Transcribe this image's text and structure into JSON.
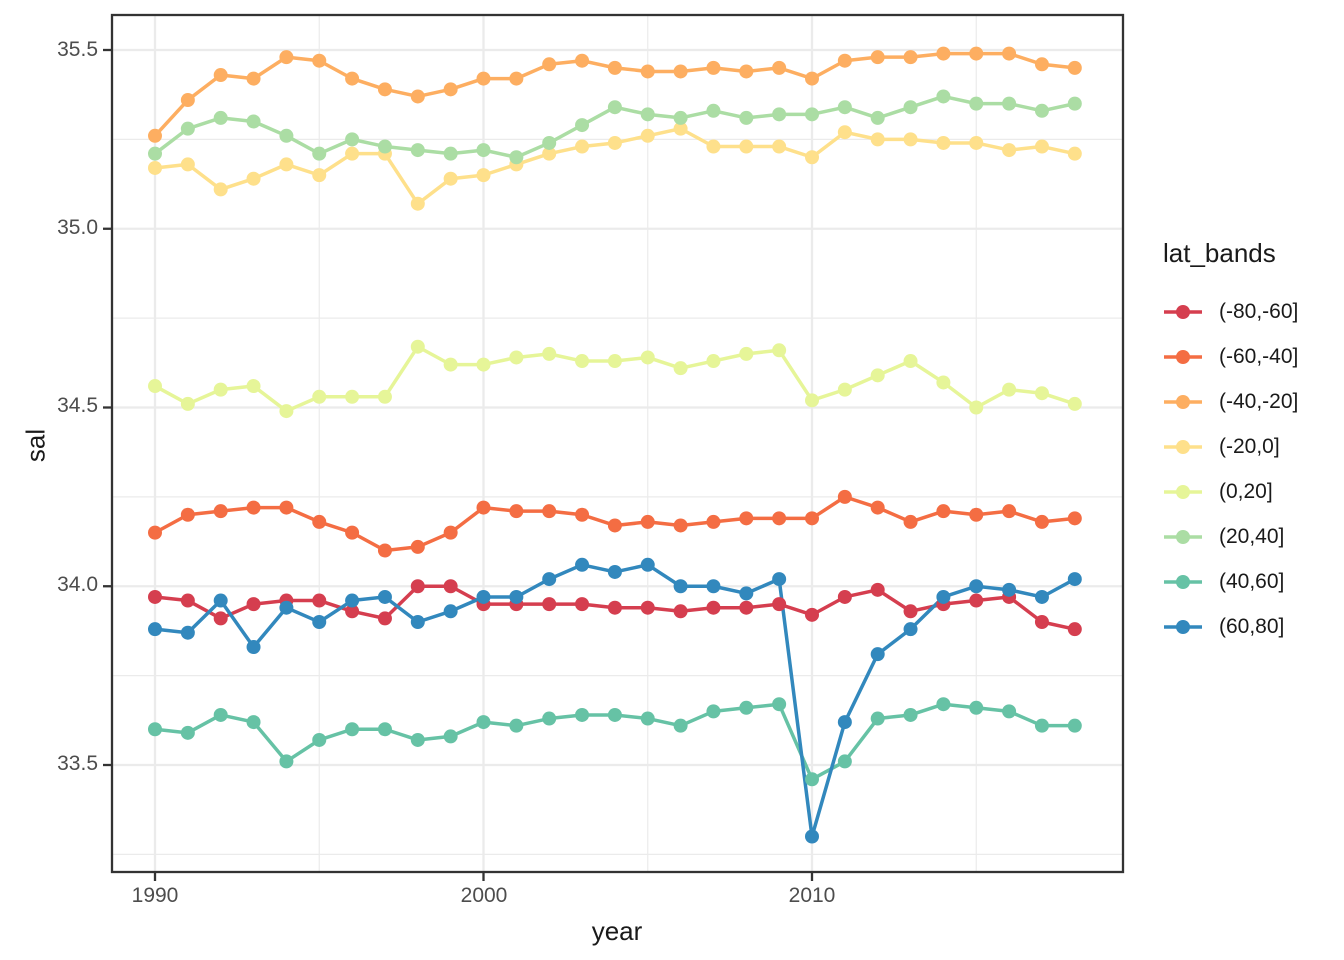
{
  "chart_data": {
    "type": "line",
    "title": "",
    "x_axis": {
      "label": "year",
      "tick_labels": [
        "1990",
        "2000",
        "2010"
      ],
      "tick_values": [
        1990,
        2000,
        2010
      ],
      "minor_gridlines": [
        1995,
        2005,
        2015
      ],
      "range": [
        1988.6,
        2019.5
      ]
    },
    "y_axis": {
      "label": "sal",
      "tick_labels": [
        "35.5",
        "35.0",
        "34.5",
        "34.0",
        "33.5"
      ],
      "tick_values": [
        35.5,
        35.0,
        34.5,
        34.0,
        33.5
      ],
      "minor_gridlines": [
        35.25,
        34.75,
        34.25,
        33.75,
        33.25
      ],
      "range": [
        33.2,
        35.6
      ]
    },
    "legend": {
      "title": "lat_bands",
      "position": "right"
    },
    "grid": "major-and-minor",
    "marker": "filled-circle",
    "panel_style": {
      "background": "#ffffff",
      "grid_color": "#ebebeb",
      "border_color": "#333333",
      "tick_color": "#333333"
    },
    "x": [
      1990,
      1991,
      1992,
      1993,
      1994,
      1995,
      1996,
      1997,
      1998,
      1999,
      2000,
      2001,
      2002,
      2003,
      2004,
      2005,
      2006,
      2007,
      2008,
      2009,
      2010,
      2011,
      2012,
      2013,
      2014,
      2015,
      2016,
      2017,
      2018
    ],
    "series": [
      {
        "name": "(-80,-60]",
        "color": "#d53e4f",
        "values": [
          33.97,
          33.96,
          33.91,
          33.95,
          33.96,
          33.96,
          33.93,
          33.91,
          34.0,
          34.0,
          33.95,
          33.95,
          33.95,
          33.95,
          33.94,
          33.94,
          33.93,
          33.94,
          33.94,
          33.95,
          33.92,
          33.97,
          33.99,
          33.93,
          33.95,
          33.96,
          33.97,
          33.9,
          33.88
        ]
      },
      {
        "name": "(-60,-40]",
        "color": "#f46d43",
        "values": [
          34.15,
          34.2,
          34.21,
          34.22,
          34.22,
          34.18,
          34.15,
          34.1,
          34.11,
          34.15,
          34.22,
          34.21,
          34.21,
          34.2,
          34.17,
          34.18,
          34.17,
          34.18,
          34.19,
          34.19,
          34.19,
          34.25,
          34.22,
          34.18,
          34.21,
          34.2,
          34.21,
          34.18,
          34.19
        ]
      },
      {
        "name": "(-40,-20]",
        "color": "#fdae61",
        "values": [
          35.26,
          35.36,
          35.43,
          35.42,
          35.48,
          35.47,
          35.42,
          35.39,
          35.37,
          35.39,
          35.42,
          35.42,
          35.46,
          35.47,
          35.45,
          35.44,
          35.44,
          35.45,
          35.44,
          35.45,
          35.42,
          35.47,
          35.48,
          35.48,
          35.49,
          35.49,
          35.49,
          35.46,
          35.45
        ]
      },
      {
        "name": "(-20,0]",
        "color": "#fee08b",
        "values": [
          35.17,
          35.18,
          35.11,
          35.14,
          35.18,
          35.15,
          35.21,
          35.21,
          35.07,
          35.14,
          35.15,
          35.18,
          35.21,
          35.23,
          35.24,
          35.26,
          35.28,
          35.23,
          35.23,
          35.23,
          35.2,
          35.27,
          35.25,
          35.25,
          35.24,
          35.24,
          35.22,
          35.23,
          35.21
        ]
      },
      {
        "name": "(0,20]",
        "color": "#e6f598",
        "values": [
          34.56,
          34.51,
          34.55,
          34.56,
          34.49,
          34.53,
          34.53,
          34.53,
          34.67,
          34.62,
          34.62,
          34.64,
          34.65,
          34.63,
          34.63,
          34.64,
          34.61,
          34.63,
          34.65,
          34.66,
          34.52,
          34.55,
          34.59,
          34.63,
          34.57,
          34.5,
          34.55,
          34.54,
          34.51
        ]
      },
      {
        "name": "(20,40]",
        "color": "#abdda4",
        "values": [
          35.21,
          35.28,
          35.31,
          35.3,
          35.26,
          35.21,
          35.25,
          35.23,
          35.22,
          35.21,
          35.22,
          35.2,
          35.24,
          35.29,
          35.34,
          35.32,
          35.31,
          35.33,
          35.31,
          35.32,
          35.32,
          35.34,
          35.31,
          35.34,
          35.37,
          35.35,
          35.35,
          35.33,
          35.35
        ]
      },
      {
        "name": "(40,60]",
        "color": "#66c2a5",
        "values": [
          33.6,
          33.59,
          33.64,
          33.62,
          33.51,
          33.57,
          33.6,
          33.6,
          33.57,
          33.58,
          33.62,
          33.61,
          33.63,
          33.64,
          33.64,
          33.63,
          33.61,
          33.65,
          33.66,
          33.67,
          33.46,
          33.51,
          33.63,
          33.64,
          33.67,
          33.66,
          33.65,
          33.61,
          33.61
        ]
      },
      {
        "name": "(60,80]",
        "color": "#3288bd",
        "values": [
          33.88,
          33.87,
          33.96,
          33.83,
          33.94,
          33.9,
          33.96,
          33.97,
          33.9,
          33.93,
          33.97,
          33.97,
          34.02,
          34.06,
          34.04,
          34.06,
          34.0,
          34.0,
          33.98,
          34.02,
          33.3,
          33.62,
          33.81,
          33.88,
          33.97,
          34.0,
          33.99,
          33.97,
          34.02
        ]
      }
    ]
  }
}
